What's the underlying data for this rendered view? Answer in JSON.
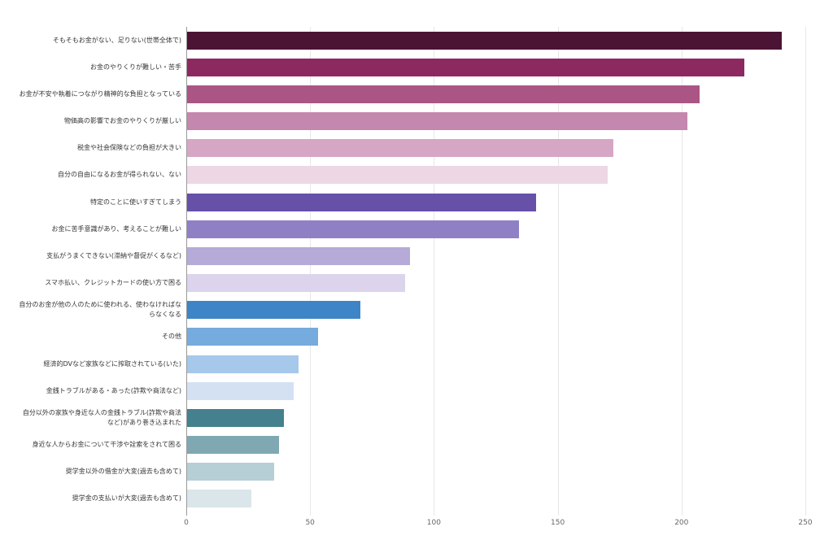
{
  "chart_data": {
    "type": "bar",
    "orientation": "horizontal",
    "title": "",
    "xlabel": "",
    "ylabel": "",
    "xlim": [
      0,
      250
    ],
    "x_ticks": [
      0,
      50,
      100,
      150,
      200,
      250
    ],
    "grid": true,
    "legend": "none",
    "colors": {
      "grid_color": "#e7e7e7",
      "zero_line_color": "#9a9a9a",
      "label_color": "#333333",
      "tick_color": "#666666"
    },
    "bars": [
      {
        "label": "そもそもお金がない、足りない(世帯全体で)",
        "value": 240,
        "color": "#4b1334"
      },
      {
        "label": "お金のやりくりが難しい・苦手",
        "value": 225,
        "color": "#8d2961"
      },
      {
        "label": "お金が不安や執着につながり精神的な負担となっている",
        "value": 207,
        "color": "#ab5585"
      },
      {
        "label": "物価高の影響でお金のやりくりが厳しい",
        "value": 202,
        "color": "#c487ad"
      },
      {
        "label": "税金や社会保険などの負担が大きい",
        "value": 172,
        "color": "#d6a7c4"
      },
      {
        "label": "自分の自由になるお金が得られない、ない",
        "value": 170,
        "color": "#eed7e4"
      },
      {
        "label": "特定のことに使いすぎてしまう",
        "value": 141,
        "color": "#6650a8"
      },
      {
        "label": "お金に苦手意識があり、考えることが難しい",
        "value": 134,
        "color": "#8f80c6"
      },
      {
        "label": "支払がうまくできない(滞納や督促がくるなど)",
        "value": 90,
        "color": "#b5aad8"
      },
      {
        "label": "スマホ払い、クレジットカードの使い方で困る",
        "value": 88,
        "color": "#dcd4ec"
      },
      {
        "label": "自分のお金が他の人のために使われる、使わなければならなくなる",
        "value": 70,
        "color": "#3d85c6"
      },
      {
        "label": "その他",
        "value": 53,
        "color": "#76abde"
      },
      {
        "label": "経済的DVなど家族などに搾取されている(いた)",
        "value": 45,
        "color": "#a6c8ea"
      },
      {
        "label": "金銭トラブルがある・あった(詐欺や商法など)",
        "value": 43,
        "color": "#d3e1f3"
      },
      {
        "label": "自分以外の家族や身近な人の金銭トラブル(詐欺や商法など)があり巻き込まれた",
        "value": 39,
        "color": "#45808e"
      },
      {
        "label": "身近な人からお金について干渉や詮索をされて困る",
        "value": 37,
        "color": "#7fa8b2"
      },
      {
        "label": "奨学金以外の借金が大変(過去も含めて)",
        "value": 35,
        "color": "#b6ced5"
      },
      {
        "label": "奨学金の支払いが大変(過去も含めて)",
        "value": 26,
        "color": "#dae6e9"
      }
    ]
  }
}
